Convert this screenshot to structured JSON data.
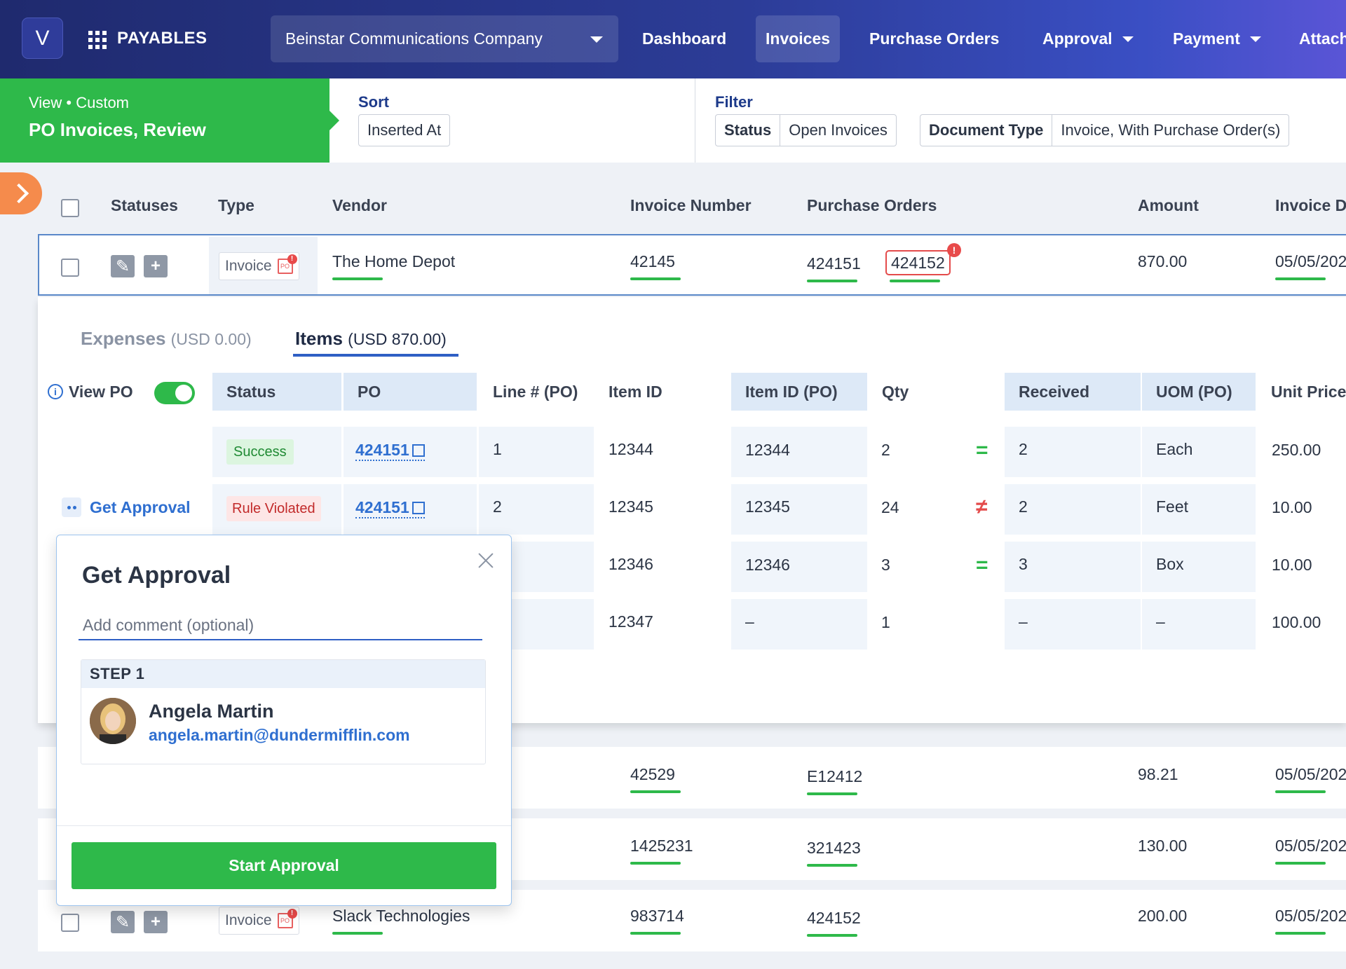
{
  "nav": {
    "logo_letter": "V",
    "app_name": "PAYABLES",
    "company": "Beinstar Communications Company",
    "items": [
      {
        "label": "Dashboard"
      },
      {
        "label": "Invoices"
      },
      {
        "label": "Purchase Orders"
      },
      {
        "label": "Approval"
      },
      {
        "label": "Payment"
      },
      {
        "label": "Attach"
      }
    ]
  },
  "view": {
    "label": "View • Custom",
    "name": "PO Invoices, Review"
  },
  "sort": {
    "title": "Sort",
    "value": "Inserted At"
  },
  "filter": {
    "title": "Filter",
    "chips": [
      {
        "key": "Status",
        "value": "Open Invoices"
      },
      {
        "key": "Document Type",
        "value": "Invoice, With Purchase Order(s)"
      }
    ]
  },
  "table": {
    "headers": [
      "Statuses",
      "Type",
      "Vendor",
      "Invoice Number",
      "Purchase Orders",
      "Amount",
      "Invoice D"
    ],
    "rows": [
      {
        "type": "Invoice",
        "vendor": "The Home Depot",
        "invoice_number": "42145",
        "po1": "424151",
        "po2": "424152",
        "amount": "870.00",
        "date": "05/05/202"
      },
      {
        "type": "",
        "vendor": "",
        "invoice_number": "42529",
        "po1": "E12412",
        "po2": "",
        "amount": "98.21",
        "date": "05/05/202"
      },
      {
        "type": "",
        "vendor": "",
        "invoice_number": "1425231",
        "po1": "321423",
        "po2": "",
        "amount": "130.00",
        "date": "05/05/202"
      },
      {
        "type": "Invoice",
        "vendor": "Slack Technologies",
        "invoice_number": "983714",
        "po1": "424152",
        "po2": "",
        "amount": "200.00",
        "date": "05/05/202"
      }
    ]
  },
  "detail": {
    "tabs": [
      {
        "label": "Expenses",
        "amount": "(USD 0.00)"
      },
      {
        "label": "Items",
        "amount": "(USD 870.00)"
      }
    ],
    "view_po_label": "View PO",
    "headers": [
      "Status",
      "PO",
      "Line # (PO)",
      "Item ID",
      "Item ID (PO)",
      "Qty",
      "Received",
      "UOM (PO)",
      "Unit Price"
    ],
    "items": [
      {
        "status": "Success",
        "po": "424151",
        "line": "1",
        "item_id": "12344",
        "item_id_po": "12344",
        "qty": "2",
        "match": "=",
        "received": "2",
        "uom": "Each",
        "unit_price": "250.00"
      },
      {
        "status": "Rule Violated",
        "po": "424151",
        "line": "2",
        "item_id": "12345",
        "item_id_po": "12345",
        "qty": "24",
        "match": "≠",
        "received": "2",
        "uom": "Feet",
        "unit_price": "10.00"
      },
      {
        "status": "",
        "po": "",
        "line": "",
        "item_id": "12346",
        "item_id_po": "12346",
        "qty": "3",
        "match": "=",
        "received": "3",
        "uom": "Box",
        "unit_price": "10.00"
      },
      {
        "status": "",
        "po": "",
        "line": "",
        "item_id": "12347",
        "item_id_po": "–",
        "qty": "1",
        "match": "",
        "received": "–",
        "uom": "–",
        "unit_price": "100.00"
      }
    ],
    "get_approval_link": "Get Approval"
  },
  "popup": {
    "title": "Get Approval",
    "comment_placeholder": "Add comment (optional)",
    "step_label": "STEP 1",
    "approver_name": "Angela Martin",
    "approver_email": "angela.martin@dundermifflin.com",
    "start_button": "Start Approval"
  },
  "icons": {
    "grid": "grid-icon",
    "edit": "pencil-icon",
    "add": "plus-icon",
    "po_alert": "po-document-alert-icon",
    "external": "external-link-icon",
    "close": "close-icon",
    "info": "info-icon",
    "expand": "chevron-right-icon"
  },
  "colors": {
    "accent_green": "#2eb94a",
    "link_blue": "#2f6fd0",
    "nav_dark": "#1f2a6e",
    "alert_red": "#e44b4b",
    "expand_orange": "#f58b4c"
  }
}
